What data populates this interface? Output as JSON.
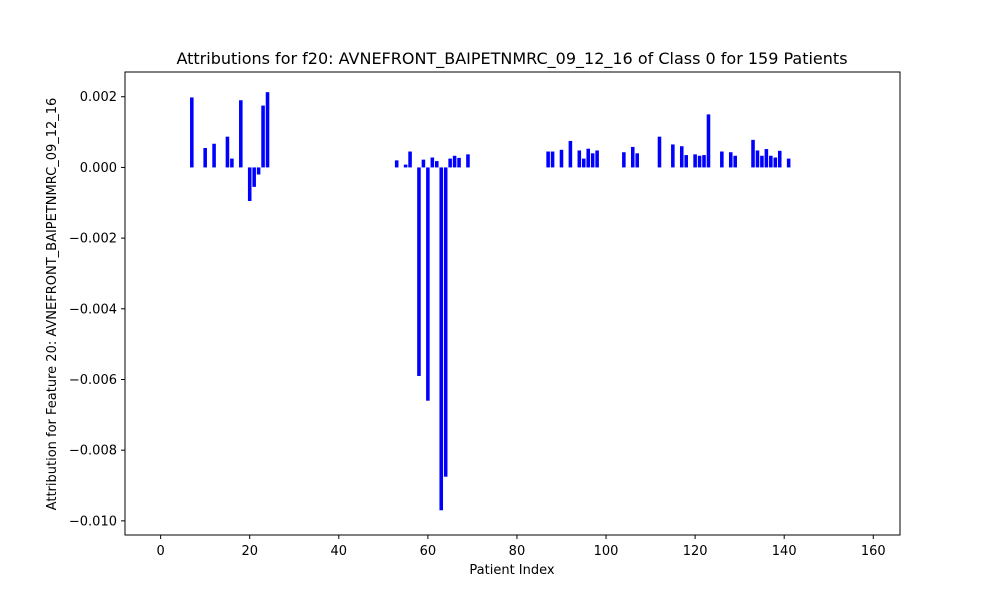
{
  "chart_data": {
    "type": "bar",
    "title": "Attributions for f20: AVNEFRONT_BAIPETNMRC_09_12_16 of Class 0 for 159 Patients",
    "xlabel": "Patient Index",
    "ylabel": "Attribution for Feature 20: AVNEFRONT_BAIPETNMRC_09_12_16",
    "xlim": [
      -8,
      166
    ],
    "ylim": [
      -0.0104,
      0.0027
    ],
    "xticks": [
      0,
      20,
      40,
      60,
      80,
      100,
      120,
      140,
      160
    ],
    "xtick_labels": [
      "0",
      "20",
      "40",
      "60",
      "80",
      "100",
      "120",
      "140",
      "160"
    ],
    "yticks": [
      0.002,
      0.0,
      -0.002,
      -0.004,
      -0.006,
      -0.008,
      -0.01
    ],
    "ytick_labels": [
      "0.002",
      "0.000",
      "−0.002",
      "−0.004",
      "−0.006",
      "−0.008",
      "−0.010"
    ],
    "grid": false,
    "bar_color": "#0000ff",
    "x": [
      7,
      10,
      12,
      15,
      16,
      18,
      20,
      21,
      22,
      23,
      24,
      53,
      55,
      56,
      58,
      59,
      60,
      61,
      62,
      63,
      64,
      65,
      66,
      67,
      69,
      87,
      88,
      90,
      92,
      94,
      95,
      96,
      97,
      98,
      104,
      106,
      107,
      112,
      115,
      117,
      118,
      120,
      121,
      122,
      123,
      126,
      128,
      129,
      133,
      134,
      135,
      136,
      137,
      138,
      139,
      141
    ],
    "values": [
      0.00198,
      0.00055,
      0.00067,
      0.00087,
      0.00025,
      0.0019,
      -0.00095,
      -0.00055,
      -0.0002,
      0.00175,
      0.00213,
      0.0002,
      8e-05,
      0.00045,
      -0.0059,
      0.00022,
      -0.0066,
      0.00028,
      0.00018,
      -0.0097,
      -0.00875,
      0.00025,
      0.00033,
      0.00027,
      0.00037,
      0.00045,
      0.00045,
      0.0005,
      0.00075,
      0.00048,
      0.00025,
      0.00053,
      0.0004,
      0.00048,
      0.00043,
      0.00058,
      0.0004,
      0.00087,
      0.00065,
      0.0006,
      0.00035,
      0.00037,
      0.00033,
      0.00035,
      0.0015,
      0.00045,
      0.00043,
      0.00033,
      0.00078,
      0.00048,
      0.00033,
      0.00052,
      0.00033,
      0.00028,
      0.00047,
      0.00025
    ]
  }
}
